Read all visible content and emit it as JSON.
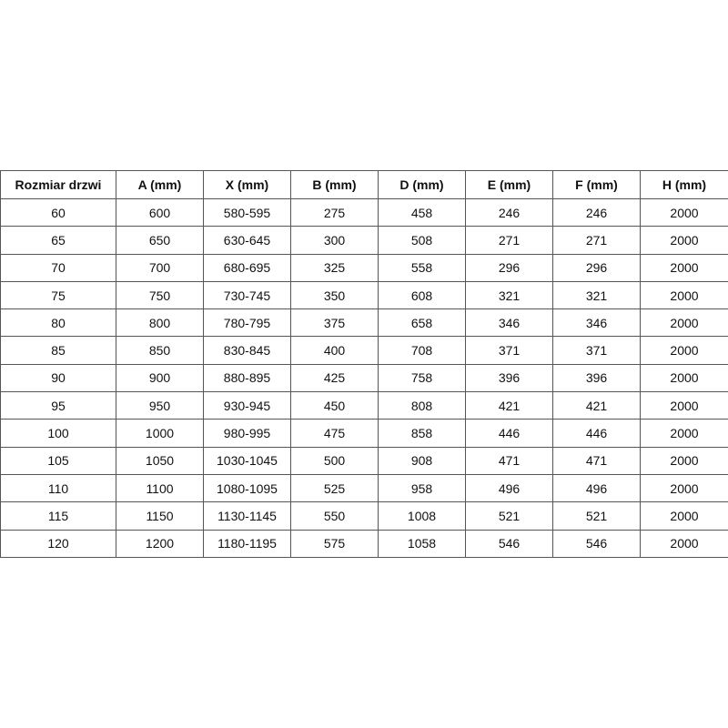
{
  "headers": [
    "Rozmiar drzwi",
    "A (mm)",
    "X (mm)",
    "B (mm)",
    "D (mm)",
    "E (mm)",
    "F (mm)",
    "H (mm)"
  ],
  "rows": [
    [
      "60",
      "600",
      "580-595",
      "275",
      "458",
      "246",
      "246",
      "2000"
    ],
    [
      "65",
      "650",
      "630-645",
      "300",
      "508",
      "271",
      "271",
      "2000"
    ],
    [
      "70",
      "700",
      "680-695",
      "325",
      "558",
      "296",
      "296",
      "2000"
    ],
    [
      "75",
      "750",
      "730-745",
      "350",
      "608",
      "321",
      "321",
      "2000"
    ],
    [
      "80",
      "800",
      "780-795",
      "375",
      "658",
      "346",
      "346",
      "2000"
    ],
    [
      "85",
      "850",
      "830-845",
      "400",
      "708",
      "371",
      "371",
      "2000"
    ],
    [
      "90",
      "900",
      "880-895",
      "425",
      "758",
      "396",
      "396",
      "2000"
    ],
    [
      "95",
      "950",
      "930-945",
      "450",
      "808",
      "421",
      "421",
      "2000"
    ],
    [
      "100",
      "1000",
      "980-995",
      "475",
      "858",
      "446",
      "446",
      "2000"
    ],
    [
      "105",
      "1050",
      "1030-1045",
      "500",
      "908",
      "471",
      "471",
      "2000"
    ],
    [
      "110",
      "1100",
      "1080-1095",
      "525",
      "958",
      "496",
      "496",
      "2000"
    ],
    [
      "115",
      "1150",
      "1130-1145",
      "550",
      "1008",
      "521",
      "521",
      "2000"
    ],
    [
      "120",
      "1200",
      "1180-1195",
      "575",
      "1058",
      "546",
      "546",
      "2000"
    ]
  ]
}
